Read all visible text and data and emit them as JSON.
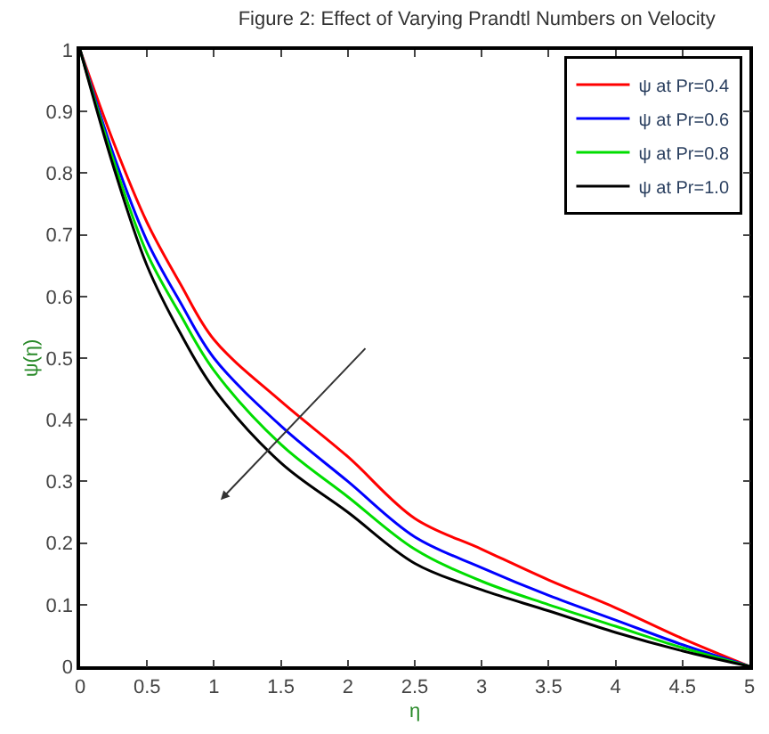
{
  "chart_data": {
    "type": "line",
    "title": "Figure 2: Effect of Varying Prandtl Numbers on Velocity",
    "xlabel": "η",
    "ylabel": "ψ(η)",
    "x": [
      0,
      0.25,
      0.5,
      0.75,
      1,
      1.5,
      2,
      2.5,
      3,
      3.5,
      4,
      4.5,
      5
    ],
    "series": [
      {
        "name": "ψ at Pr=0.4",
        "color": "#ff0000",
        "values": [
          1,
          0.85,
          0.72,
          0.62,
          0.53,
          0.43,
          0.34,
          0.24,
          0.19,
          0.14,
          0.095,
          0.045,
          0
        ]
      },
      {
        "name": "ψ at Pr=0.6",
        "color": "#0000ff",
        "values": [
          1,
          0.83,
          0.69,
          0.59,
          0.5,
          0.39,
          0.3,
          0.21,
          0.16,
          0.115,
          0.075,
          0.035,
          0
        ]
      },
      {
        "name": "ψ at Pr=0.8",
        "color": "#00dd00",
        "values": [
          1,
          0.82,
          0.67,
          0.57,
          0.48,
          0.36,
          0.275,
          0.19,
          0.138,
          0.1,
          0.065,
          0.03,
          0
        ]
      },
      {
        "name": "ψ at Pr=1.0",
        "color": "#000000",
        "values": [
          1,
          0.81,
          0.65,
          0.54,
          0.45,
          0.33,
          0.25,
          0.167,
          0.124,
          0.09,
          0.055,
          0.025,
          0
        ]
      }
    ],
    "xlim": [
      0,
      5
    ],
    "xticks": [
      0,
      0.5,
      1,
      1.5,
      2,
      2.5,
      3,
      3.5,
      4,
      4.5,
      5
    ],
    "ylim": [
      0,
      1
    ],
    "yticks": [
      0,
      0.1,
      0.2,
      0.3,
      0.4,
      0.5,
      0.6,
      0.7,
      0.8,
      0.9,
      1
    ],
    "legend": "top right",
    "marker": "none",
    "line_style": "solid"
  }
}
